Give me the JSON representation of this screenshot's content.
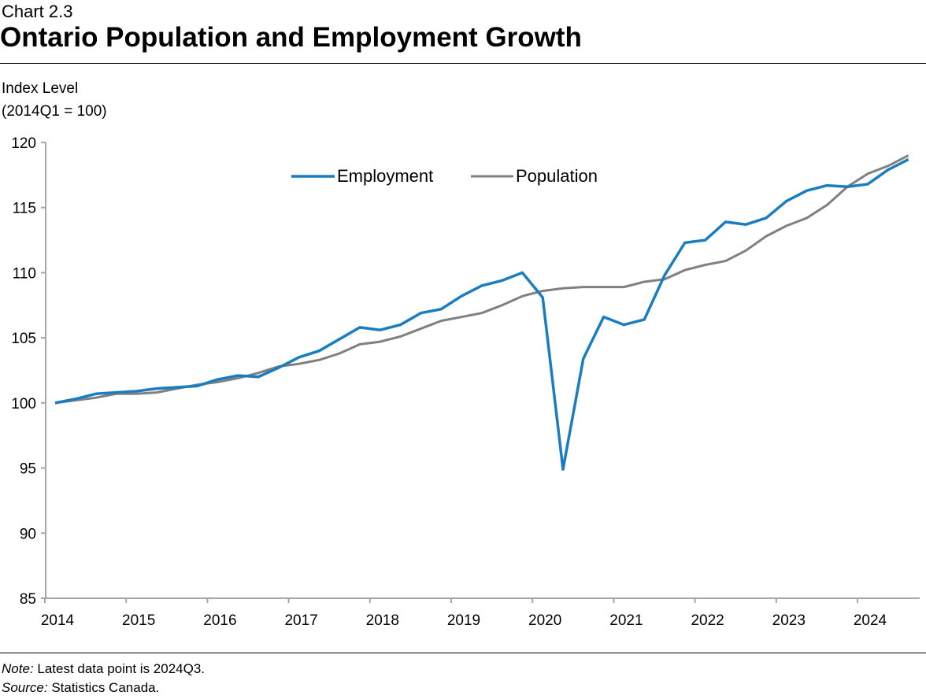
{
  "header": {
    "kicker": "Chart 2.3",
    "title": "Ontario Population and Employment Growth"
  },
  "notes": {
    "note_label": "Note:",
    "note_text": " Latest data point is 2024Q3.",
    "source_label": "Source:",
    "source_text": " Statistics Canada."
  },
  "colors": {
    "employment": "#1a7dc0",
    "population": "#808080"
  },
  "chart_data": {
    "type": "line",
    "title": "Ontario Population and Employment Growth",
    "ylabel": [
      "Index Level",
      "(2014Q1 = 100)"
    ],
    "xlabel": "",
    "ylim": [
      85,
      120
    ],
    "yticks": [
      85,
      90,
      95,
      100,
      105,
      110,
      115,
      120
    ],
    "xticks": [
      "2014",
      "2015",
      "2016",
      "2017",
      "2018",
      "2019",
      "2020",
      "2021",
      "2022",
      "2023",
      "2024"
    ],
    "x_start": "2014Q1",
    "x_end": "2024Q3",
    "frequency": "quarterly",
    "grid": false,
    "legend_position": "top-center",
    "series": [
      {
        "name": "Employment",
        "values": [
          100,
          100.3,
          100.7,
          100.8,
          100.9,
          101.1,
          101.2,
          101.3,
          101.8,
          102.1,
          102.0,
          102.7,
          103.5,
          104.0,
          104.9,
          105.8,
          105.6,
          106.0,
          106.9,
          107.2,
          108.2,
          109.0,
          109.4,
          110.0,
          108.1,
          94.9,
          103.4,
          106.6,
          106.0,
          106.4,
          109.8,
          112.3,
          112.5,
          113.9,
          113.7,
          114.2,
          115.5,
          116.3,
          116.7,
          116.6,
          116.8,
          117.9,
          118.7
        ]
      },
      {
        "name": "Population",
        "values": [
          100,
          100.2,
          100.4,
          100.7,
          100.7,
          100.8,
          101.1,
          101.4,
          101.6,
          101.9,
          102.3,
          102.8,
          103.0,
          103.3,
          103.8,
          104.5,
          104.7,
          105.1,
          105.7,
          106.3,
          106.6,
          106.9,
          107.5,
          108.2,
          108.6,
          108.8,
          108.9,
          108.9,
          108.9,
          109.3,
          109.5,
          110.2,
          110.6,
          110.9,
          111.7,
          112.8,
          113.6,
          114.2,
          115.2,
          116.6,
          117.6,
          118.2,
          119.0
        ]
      }
    ]
  }
}
